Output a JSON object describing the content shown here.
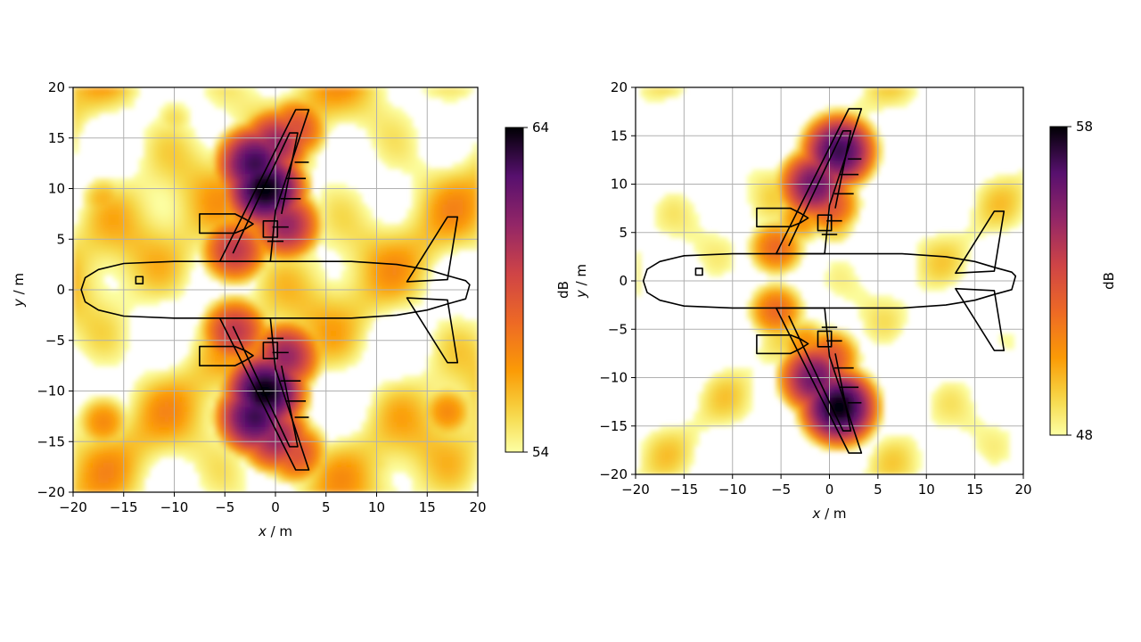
{
  "chart_data": [
    {
      "type": "heatmap",
      "name": "left",
      "xlabel_var": "x",
      "xlabel_unit": " / m",
      "ylabel_var": "y",
      "ylabel_unit": " / m",
      "xlim": [
        -20,
        20
      ],
      "ylim": [
        -20,
        20
      ],
      "xticks": [
        -20,
        -15,
        -10,
        -5,
        0,
        5,
        10,
        15,
        20
      ],
      "yticks": [
        -20,
        -15,
        -10,
        -5,
        0,
        5,
        10,
        15,
        20
      ],
      "grid": true,
      "colormap": "inferno_r",
      "colorbar": {
        "min": 54,
        "max": 64,
        "label": "dB",
        "tick_labels": [
          "54",
          "64"
        ]
      },
      "sources": [
        {
          "x": -1,
          "y": 10,
          "v": 64
        },
        {
          "x": -1,
          "y": -10,
          "v": 64
        },
        {
          "x": -2,
          "y": 12.5,
          "v": 63
        },
        {
          "x": -2,
          "y": -12.5,
          "v": 63
        },
        {
          "x": 0,
          "y": 14.5,
          "v": 61
        },
        {
          "x": 0,
          "y": -14.5,
          "v": 61
        },
        {
          "x": 1,
          "y": 6.5,
          "v": 61
        },
        {
          "x": 1,
          "y": -6.5,
          "v": 61
        },
        {
          "x": -4,
          "y": 4,
          "v": 60
        },
        {
          "x": -4,
          "y": -4,
          "v": 60
        },
        {
          "x": 2,
          "y": 16,
          "v": 59
        },
        {
          "x": 2,
          "y": -16,
          "v": 59
        },
        {
          "x": -17,
          "y": 9,
          "v": 56
        },
        {
          "x": -17,
          "y": -13,
          "v": 57
        },
        {
          "x": 18,
          "y": 10,
          "v": 56
        },
        {
          "x": 17,
          "y": -12,
          "v": 57
        },
        {
          "x": 10,
          "y": -17,
          "v": 55
        },
        {
          "x": -10,
          "y": 17,
          "v": 55
        }
      ],
      "background_level": 54.5
    },
    {
      "type": "heatmap",
      "name": "right",
      "xlabel_var": "x",
      "xlabel_unit": " / m",
      "ylabel_var": "y",
      "ylabel_unit": " / m",
      "xlim": [
        -20,
        20
      ],
      "ylim": [
        -20,
        20
      ],
      "xticks": [
        -20,
        -15,
        -10,
        -5,
        0,
        5,
        10,
        15,
        20
      ],
      "yticks": [
        -20,
        -15,
        -10,
        -5,
        0,
        5,
        10,
        15,
        20
      ],
      "grid": true,
      "colormap": "inferno_r",
      "colorbar": {
        "min": 48,
        "max": 58,
        "label": "dB",
        "tick_labels": [
          "48",
          "58"
        ]
      },
      "sources": [
        {
          "x": -1.5,
          "y": 10,
          "v": 56
        },
        {
          "x": -1.5,
          "y": -10,
          "v": 56
        },
        {
          "x": 1,
          "y": 13.5,
          "v": 57
        },
        {
          "x": 1,
          "y": -13,
          "v": 58
        },
        {
          "x": -5.5,
          "y": 3.5,
          "v": 52
        },
        {
          "x": -5.5,
          "y": -3,
          "v": 52
        },
        {
          "x": -3,
          "y": 6.5,
          "v": 51
        },
        {
          "x": 0.5,
          "y": 6,
          "v": 50
        },
        {
          "x": -2.5,
          "y": -6.5,
          "v": 51
        },
        {
          "x": 0,
          "y": 8,
          "v": 53
        },
        {
          "x": 0,
          "y": -8,
          "v": 53
        }
      ],
      "background_level": 47
    }
  ],
  "colorbar_labels": {
    "left": "dB",
    "right": "dB"
  }
}
